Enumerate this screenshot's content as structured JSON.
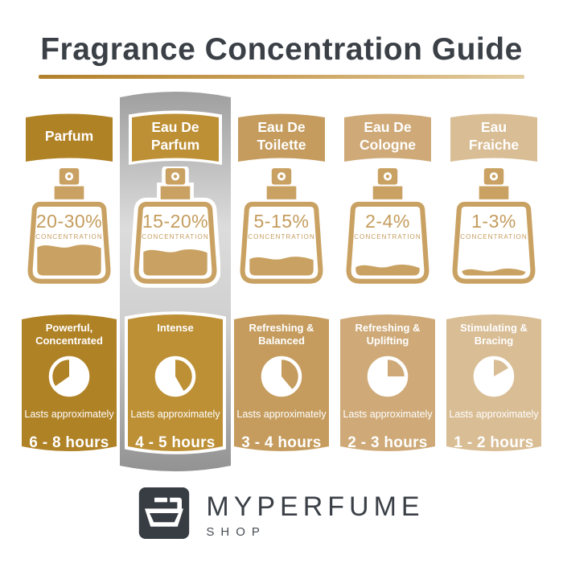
{
  "title": "Fragrance Concentration Guide",
  "colors": {
    "charcoal": "#3b4047",
    "bottle_tan": "#c9a263",
    "percent_text": "#c49c5d",
    "underline_gold_left": "#b2812a",
    "underline_gold_right": "#e3cda1",
    "highlight_silver": "#b0b0b0",
    "logo_background": "#383d44"
  },
  "columns": [
    {
      "name": "Parfum",
      "label": "Parfum",
      "concentration": "20-30%",
      "concentration_caption": "CONCENTRATION",
      "bottle_fill_percent": 45,
      "character": "Powerful, Concentrated",
      "lasts_label": "Lasts approximately",
      "duration": "6 - 8 hours",
      "clock": {
        "filled_start_deg": 0,
        "filled_end_deg": 235
      },
      "accent_color": "#b08226",
      "highlighted": false
    },
    {
      "name": "Eau De Parfum",
      "label": "Eau De Parfum",
      "concentration": "15-20%",
      "concentration_caption": "CONCENTRATION",
      "bottle_fill_percent": 38,
      "character": "Intense",
      "lasts_label": "Lasts approximately",
      "duration": "4 - 5 hours",
      "clock": {
        "filled_start_deg": 150,
        "filled_end_deg": 360
      },
      "accent_color": "#bd9036",
      "highlighted": true
    },
    {
      "name": "Eau De Toilette",
      "label": "Eau De Toilette",
      "concentration": "5-15%",
      "concentration_caption": "CONCENTRATION",
      "bottle_fill_percent": 27,
      "character": "Refreshing & Balanced",
      "lasts_label": "Lasts approximately",
      "duration": "3 - 4 hours",
      "clock": {
        "filled_start_deg": 140,
        "filled_end_deg": 360
      },
      "accent_color": "#c59c5e",
      "highlighted": false
    },
    {
      "name": "Eau De Cologne",
      "label": "Eau De Cologne",
      "concentration": "2-4%",
      "concentration_caption": "CONCENTRATION",
      "bottle_fill_percent": 15,
      "character": "Refreshing & Uplifting",
      "lasts_label": "Lasts approximately",
      "duration": "2 - 3 hours",
      "clock": {
        "filled_start_deg": 90,
        "filled_end_deg": 360
      },
      "accent_color": "#cfaa78",
      "highlighted": false
    },
    {
      "name": "Eau Fraiche",
      "label": "Eau Fraiche",
      "concentration": "1-3%",
      "concentration_caption": "CONCENTRATION",
      "bottle_fill_percent": 9,
      "character": "Stimulating & Bracing",
      "lasts_label": "Lasts approximately",
      "duration": "1 - 2 hours",
      "clock": {
        "filled_start_deg": 60,
        "filled_end_deg": 360
      },
      "accent_color": "#d9bd95",
      "highlighted": false
    }
  ],
  "brand": {
    "name": "MYPERFUME",
    "subtitle": "SHOP",
    "icon": "perfume-bottle-logo"
  }
}
